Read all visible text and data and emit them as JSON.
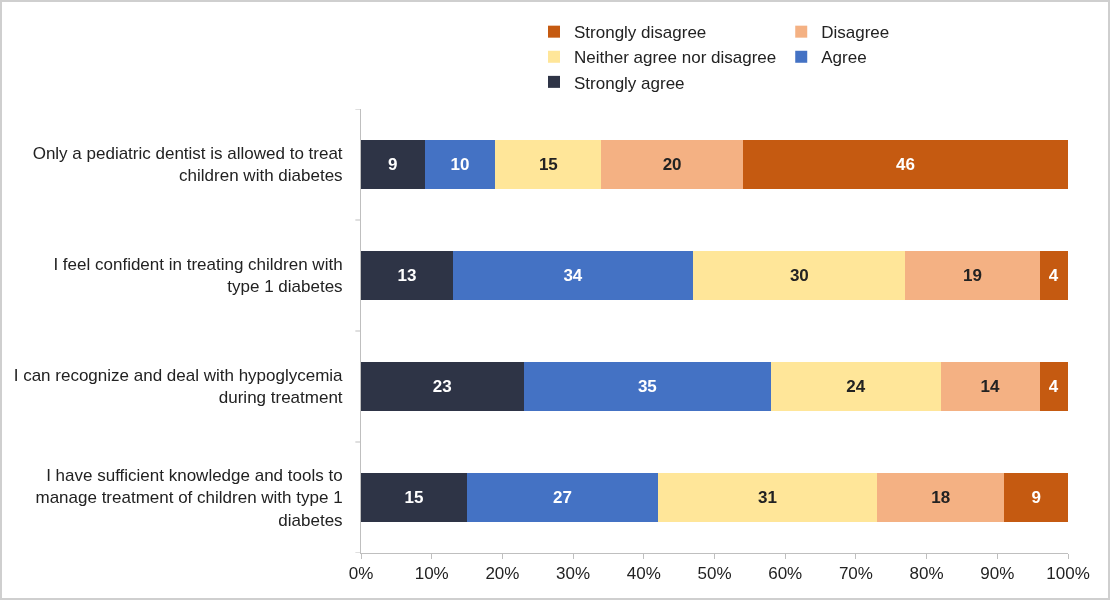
{
  "chart_data": {
    "type": "bar",
    "orientation": "horizontal",
    "stacked": true,
    "data_labels": true,
    "legend": "top",
    "grid": false,
    "categories": [
      "Only a pediatric dentist is allowed to treat children with diabetes",
      "I feel confident in treating children with type 1 diabetes",
      "I can recognize and deal with hypoglycemia during treatment",
      "I have sufficient knowledge and tools to manage treatment of children with type 1 diabetes"
    ],
    "series": [
      {
        "name": "Strongly agree",
        "color": "#2e3446",
        "values": [
          9,
          13,
          23,
          15
        ]
      },
      {
        "name": "Agree",
        "color": "#4472c4",
        "values": [
          10,
          34,
          35,
          27
        ]
      },
      {
        "name": "Neither agree nor disagree",
        "color": "#ffe699",
        "values": [
          15,
          30,
          24,
          31
        ]
      },
      {
        "name": "Disagree",
        "color": "#f4b183",
        "values": [
          20,
          19,
          14,
          18
        ]
      },
      {
        "name": "Strongly disagree",
        "color": "#c55a11",
        "values": [
          46,
          4,
          4,
          9
        ]
      }
    ],
    "xlim": [
      0,
      100
    ],
    "xticks": [
      {
        "value": 0,
        "label": "0%"
      },
      {
        "value": 10,
        "label": "10%"
      },
      {
        "value": 20,
        "label": "20%"
      },
      {
        "value": 30,
        "label": "30%"
      },
      {
        "value": 40,
        "label": "40%"
      },
      {
        "value": 50,
        "label": "50%"
      },
      {
        "value": 60,
        "label": "60%"
      },
      {
        "value": 70,
        "label": "70%"
      },
      {
        "value": 80,
        "label": "80%"
      },
      {
        "value": 90,
        "label": "90%"
      },
      {
        "value": 100,
        "label": "100%"
      }
    ]
  }
}
